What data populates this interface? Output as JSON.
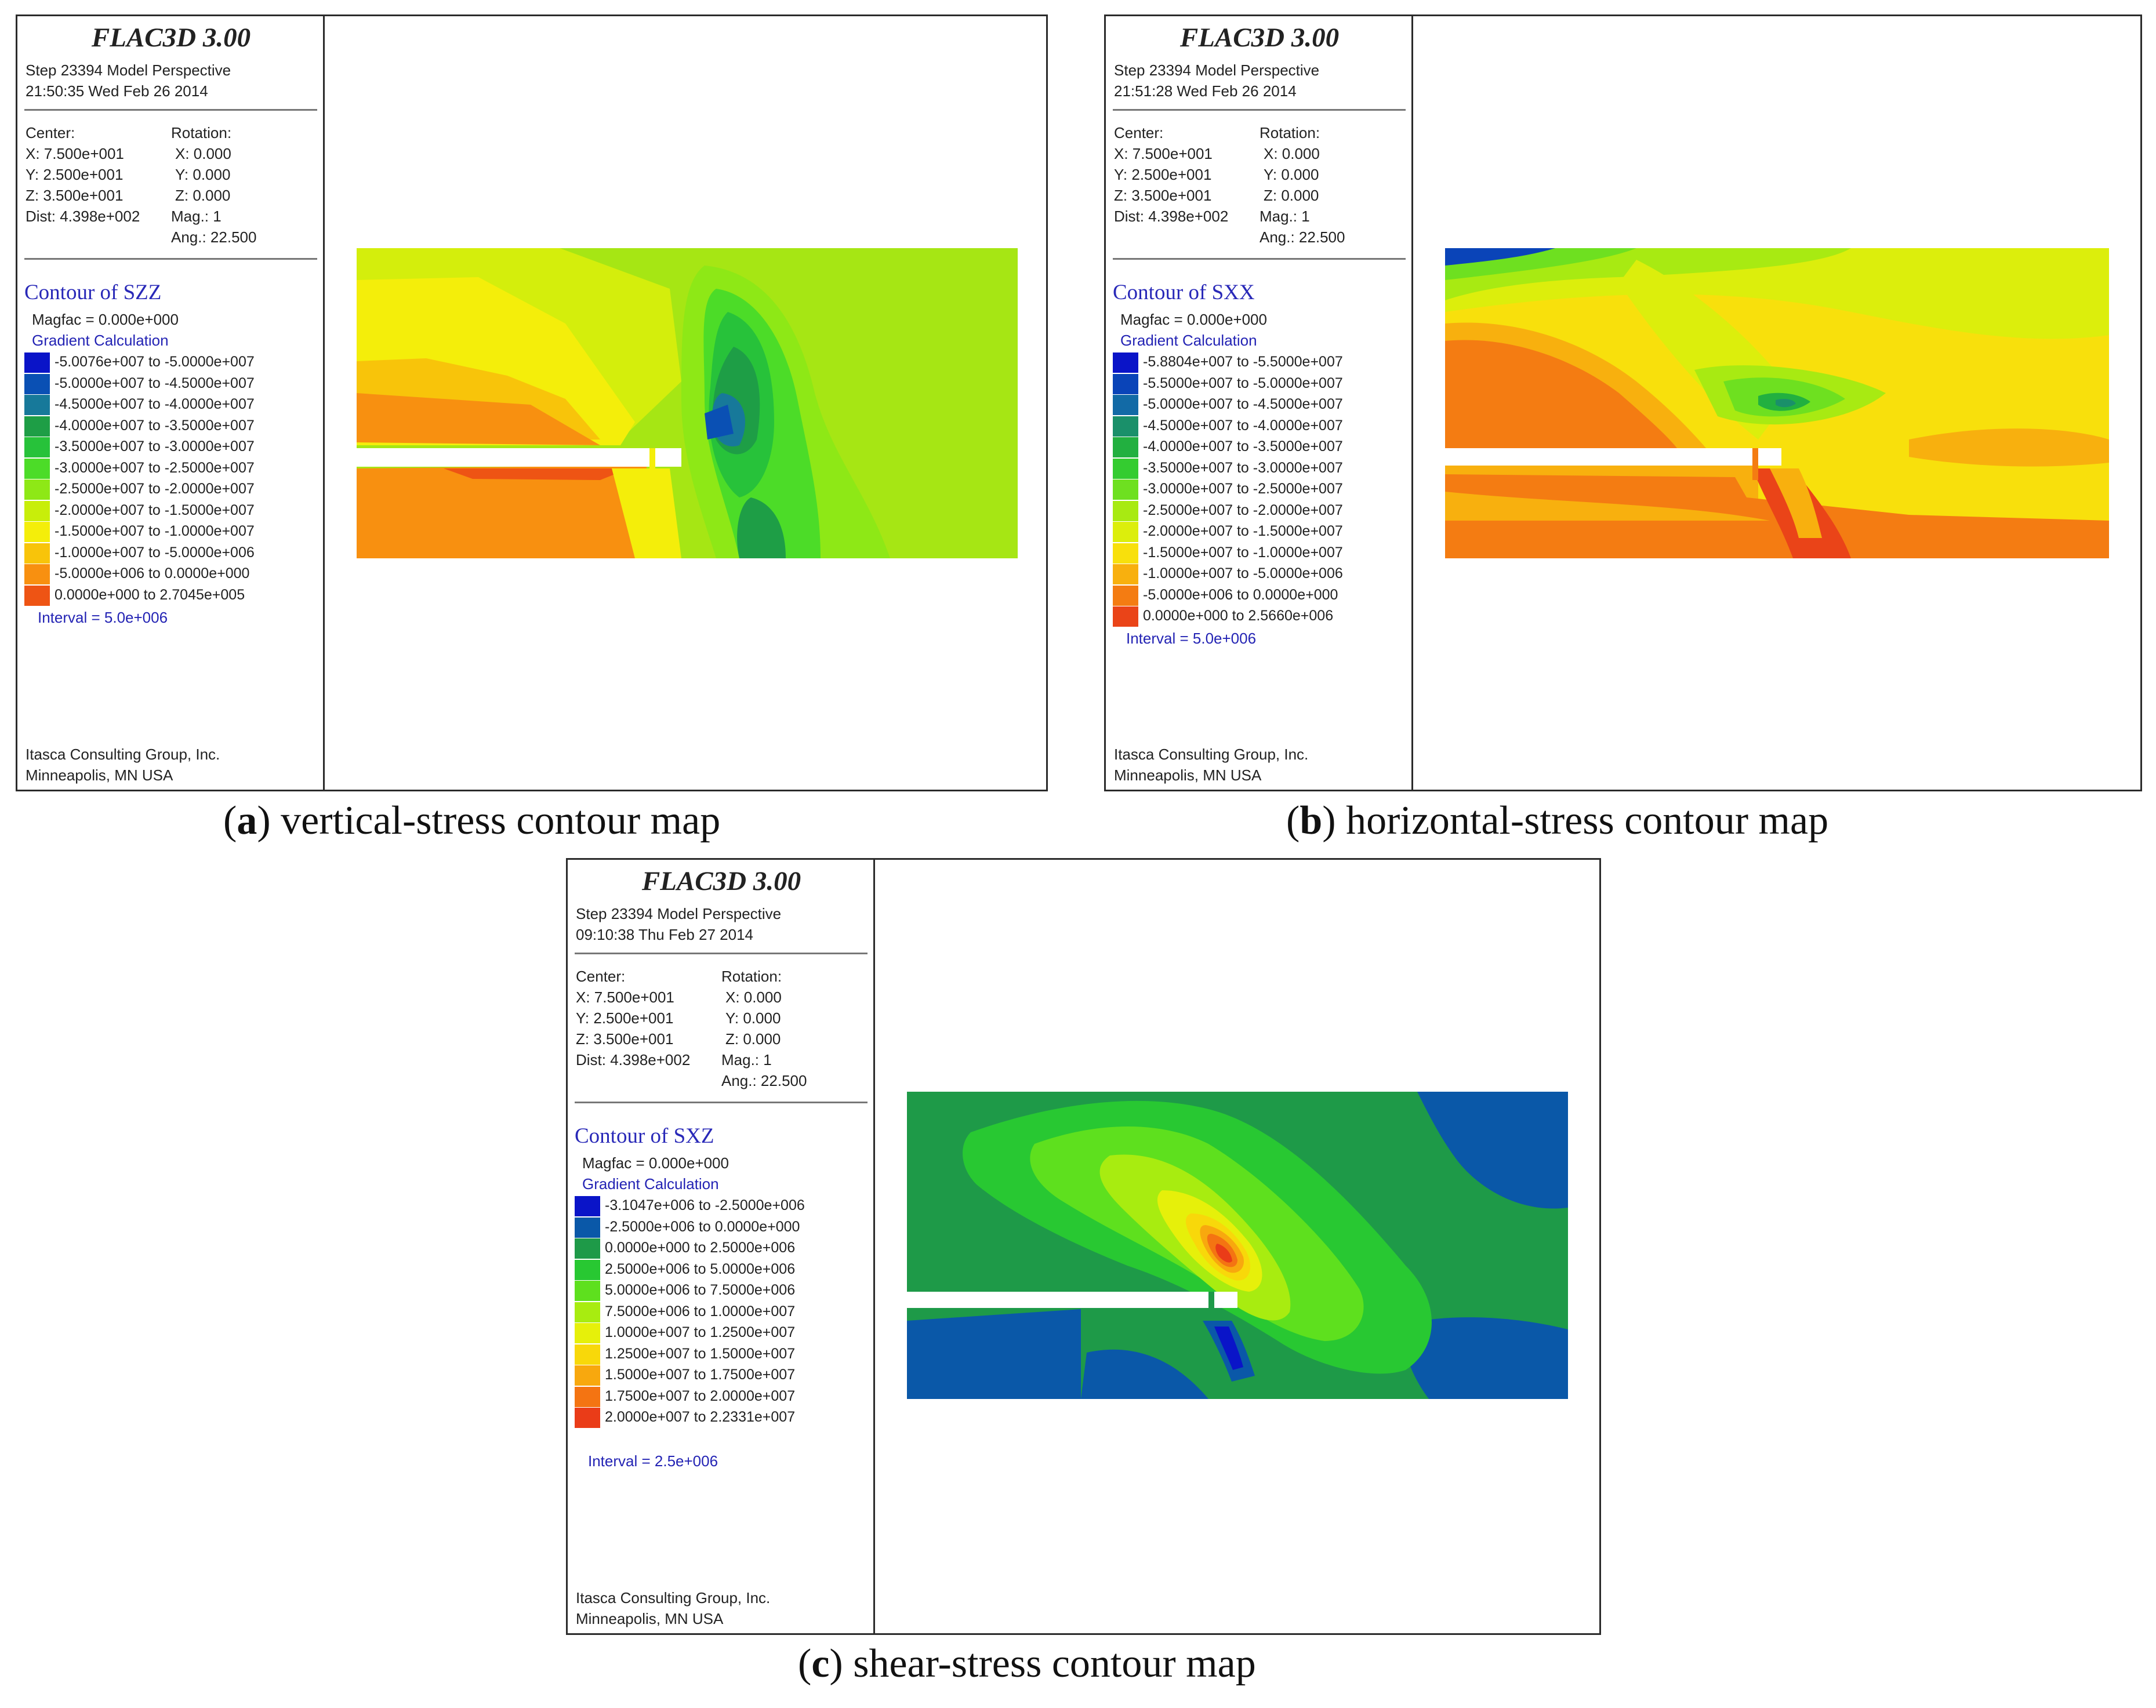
{
  "panels": {
    "a": {
      "app_title": "FLAC3D 3.00",
      "step_line": "Step 23394  Model Perspective",
      "time_line": "21:50:35 Wed Feb 26 2014",
      "center_label": "Center:",
      "center_x": "X: 7.500e+001",
      "center_y": "Y: 2.500e+001",
      "center_z": "Z: 3.500e+001",
      "dist": "Dist: 4.398e+002",
      "rotation_label": "Rotation:",
      "rot_x": "X:   0.000",
      "rot_y": "Y:   0.000",
      "rot_z": "Z:   0.000",
      "mag": "Mag.:       1",
      "ang": "Ang.:  22.500",
      "contour_title": "Contour of SZZ",
      "magfac": "Magfac  =  0.000e+000",
      "gradient": "Gradient Calculation",
      "legend": [
        {
          "color": "#0a14c8",
          "label": "-5.0076e+007 to -5.0000e+007"
        },
        {
          "color": "#0a50b4",
          "label": "-5.0000e+007 to -4.5000e+007"
        },
        {
          "color": "#17799a",
          "label": "-4.5000e+007 to -4.0000e+007"
        },
        {
          "color": "#1e9e46",
          "label": "-4.0000e+007 to -3.5000e+007"
        },
        {
          "color": "#27c23a",
          "label": "-3.5000e+007 to -3.0000e+007"
        },
        {
          "color": "#4cdc28",
          "label": "-3.0000e+007 to -2.5000e+007"
        },
        {
          "color": "#8ee816",
          "label": "-2.5000e+007 to -2.0000e+007"
        },
        {
          "color": "#c8ee0a",
          "label": "-2.0000e+007 to -1.5000e+007"
        },
        {
          "color": "#f4ee0a",
          "label": "-1.5000e+007 to -1.0000e+007"
        },
        {
          "color": "#f8c40a",
          "label": "-1.0000e+007 to -5.0000e+006"
        },
        {
          "color": "#f89010",
          "label": "-5.0000e+006 to  0.0000e+000"
        },
        {
          "color": "#ee5414",
          "label": "0.0000e+000 to  2.7045e+005"
        }
      ],
      "interval": "Interval  =  5.0e+006",
      "company": "Itasca Consulting Group, Inc.",
      "location": "Minneapolis, MN  USA"
    },
    "b": {
      "app_title": "FLAC3D 3.00",
      "step_line": "Step 23394  Model Perspective",
      "time_line": "21:51:28 Wed Feb 26 2014",
      "center_label": "Center:",
      "center_x": "X: 7.500e+001",
      "center_y": "Y: 2.500e+001",
      "center_z": "Z: 3.500e+001",
      "dist": "Dist: 4.398e+002",
      "rotation_label": "Rotation:",
      "rot_x": "X:   0.000",
      "rot_y": "Y:   0.000",
      "rot_z": "Z:   0.000",
      "mag": "Mag.:       1",
      "ang": "Ang.:  22.500",
      "contour_title": "Contour of SXX",
      "magfac": "Magfac  =  0.000e+000",
      "gradient": "Gradient Calculation",
      "legend": [
        {
          "color": "#0a14c8",
          "label": "-5.8804e+007 to -5.5000e+007"
        },
        {
          "color": "#0a44b8",
          "label": "-5.5000e+007 to -5.0000e+007"
        },
        {
          "color": "#126aa6",
          "label": "-5.0000e+007 to -4.5000e+007"
        },
        {
          "color": "#1a906a",
          "label": "-4.5000e+007 to -4.0000e+007"
        },
        {
          "color": "#22b040",
          "label": "-4.0000e+007 to -3.5000e+007"
        },
        {
          "color": "#34cc30",
          "label": "-3.5000e+007 to -3.0000e+007"
        },
        {
          "color": "#6ee020",
          "label": "-3.0000e+007 to -2.5000e+007"
        },
        {
          "color": "#a8ea12",
          "label": "-2.5000e+007 to -2.0000e+007"
        },
        {
          "color": "#dcee0c",
          "label": "-2.0000e+007 to -1.5000e+007"
        },
        {
          "color": "#f8e00c",
          "label": "-1.5000e+007 to -1.0000e+007"
        },
        {
          "color": "#f8b00e",
          "label": "-1.0000e+007 to -5.0000e+006"
        },
        {
          "color": "#f47c12",
          "label": "-5.0000e+006 to  0.0000e+000"
        },
        {
          "color": "#ea4418",
          "label": "0.0000e+000 to  2.5660e+006"
        }
      ],
      "interval": "Interval  =  5.0e+006",
      "company": "Itasca Consulting Group, Inc.",
      "location": "Minneapolis, MN  USA"
    },
    "c": {
      "app_title": "FLAC3D 3.00",
      "step_line": "Step 23394  Model Perspective",
      "time_line": "09:10:38 Thu Feb 27 2014",
      "center_label": "Center:",
      "center_x": "X: 7.500e+001",
      "center_y": "Y: 2.500e+001",
      "center_z": "Z: 3.500e+001",
      "dist": "Dist: 4.398e+002",
      "rotation_label": "Rotation:",
      "rot_x": "X:   0.000",
      "rot_y": "Y:   0.000",
      "rot_z": "Z:   0.000",
      "mag": "Mag.:       1",
      "ang": "Ang.:  22.500",
      "contour_title": "Contour of SXZ",
      "magfac": "Magfac  =  0.000e+000",
      "gradient": "Gradient Calculation",
      "legend": [
        {
          "color": "#0a14c8",
          "label": "-3.1047e+006 to -2.5000e+006"
        },
        {
          "color": "#0a58a8",
          "label": "-2.5000e+006 to  0.0000e+000"
        },
        {
          "color": "#1e9a48",
          "label": "0.0000e+000 to  2.5000e+006"
        },
        {
          "color": "#28c832",
          "label": "2.5000e+006 to  5.0000e+006"
        },
        {
          "color": "#5ee01e",
          "label": "5.0000e+006 to  7.5000e+006"
        },
        {
          "color": "#a8ec10",
          "label": "7.5000e+006 to  1.0000e+007"
        },
        {
          "color": "#e6f00a",
          "label": "1.0000e+007 to  1.2500e+007"
        },
        {
          "color": "#f8d80a",
          "label": "1.2500e+007 to  1.5000e+007"
        },
        {
          "color": "#f8a80e",
          "label": "1.5000e+007 to  1.7500e+007"
        },
        {
          "color": "#f47412",
          "label": "1.7500e+007 to  2.0000e+007"
        },
        {
          "color": "#ea3c18",
          "label": "2.0000e+007 to  2.2331e+007"
        }
      ],
      "interval": "Interval  =  2.5e+006",
      "company": "Itasca Consulting Group, Inc.",
      "location": "Minneapolis, MN  USA"
    }
  },
  "captions": {
    "a": {
      "letter": "a",
      "text": "vertical-stress contour map"
    },
    "b": {
      "letter": "b",
      "text": "horizontal-stress contour map"
    },
    "c": {
      "letter": "c",
      "text": "shear-stress contour map"
    }
  },
  "paren_open": "(",
  "paren_close": ")"
}
